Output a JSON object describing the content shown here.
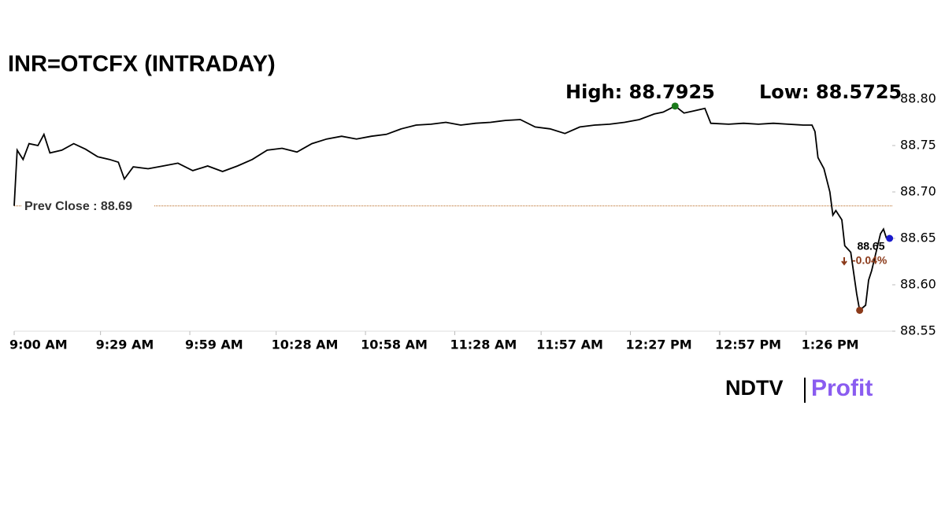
{
  "chart_data": {
    "type": "line",
    "title": "INR=OTCFX (INTRADAY)",
    "x": [
      "9:00 AM",
      "9:01 AM",
      "9:03 AM",
      "9:05 AM",
      "9:08 AM",
      "9:10 AM",
      "9:12 AM",
      "9:16 AM",
      "9:20 AM",
      "9:24 AM",
      "9:28 AM",
      "9:32 AM",
      "9:35 AM",
      "9:37 AM",
      "9:40 AM",
      "9:45 AM",
      "9:50 AM",
      "9:55 AM",
      "10:00 AM",
      "10:05 AM",
      "10:10 AM",
      "10:15 AM",
      "10:20 AM",
      "10:25 AM",
      "10:30 AM",
      "10:35 AM",
      "10:40 AM",
      "10:45 AM",
      "10:50 AM",
      "10:55 AM",
      "11:00 AM",
      "11:05 AM",
      "11:10 AM",
      "11:15 AM",
      "11:20 AM",
      "11:25 AM",
      "11:30 AM",
      "11:35 AM",
      "11:40 AM",
      "11:45 AM",
      "11:50 AM",
      "11:55 AM",
      "12:00 PM",
      "12:05 PM",
      "12:10 PM",
      "12:15 PM",
      "12:20 PM",
      "12:25 PM",
      "12:30 PM",
      "12:35 PM",
      "12:38 PM",
      "12:42 PM",
      "12:45 PM",
      "12:48 PM",
      "12:52 PM",
      "12:54 PM",
      "1:00 PM",
      "1:05 PM",
      "1:10 PM",
      "1:15 PM",
      "1:20 PM",
      "1:25 PM",
      "1:28 PM",
      "1:29 PM",
      "1:30 PM",
      "1:32 PM",
      "1:34 PM",
      "1:35 PM",
      "1:36 PM",
      "1:38 PM",
      "1:39 PM",
      "1:41 PM",
      "1:43 PM",
      "1:44 PM",
      "1:46 PM",
      "1:47 PM",
      "1:48 PM",
      "1:51 PM",
      "1:52 PM",
      "1:53 PM"
    ],
    "values": [
      88.685,
      88.745,
      88.735,
      88.752,
      88.75,
      88.762,
      88.742,
      88.745,
      88.752,
      88.746,
      88.738,
      88.735,
      88.732,
      88.714,
      88.727,
      88.725,
      88.728,
      88.731,
      88.723,
      88.728,
      88.722,
      88.728,
      88.735,
      88.745,
      88.747,
      88.743,
      88.752,
      88.757,
      88.76,
      88.757,
      88.76,
      88.762,
      88.768,
      88.772,
      88.773,
      88.775,
      88.772,
      88.774,
      88.775,
      88.777,
      88.778,
      88.77,
      88.768,
      88.763,
      88.77,
      88.772,
      88.773,
      88.775,
      88.778,
      88.784,
      88.786,
      88.7925,
      88.785,
      88.787,
      88.79,
      88.774,
      88.773,
      88.774,
      88.773,
      88.774,
      88.773,
      88.772,
      88.772,
      88.765,
      88.737,
      88.725,
      88.7,
      88.675,
      88.68,
      88.67,
      88.642,
      88.635,
      88.59,
      88.5725,
      88.578,
      88.605,
      88.615,
      88.655,
      88.66,
      88.65
    ],
    "color": "#000000",
    "xlim": [
      "9:00 AM",
      "1:56 PM"
    ],
    "xticks": [
      "9:00 AM",
      "9:29 AM",
      "9:59 AM",
      "10:28 AM",
      "10:58 AM",
      "11:28 AM",
      "11:57 AM",
      "12:27 PM",
      "12:57 PM",
      "1:26 PM"
    ],
    "ylim": [
      88.55,
      88.8
    ],
    "yticks": [
      88.55,
      {
        "value": 88.6,
        "label": "88.60"
      },
      88.65,
      {
        "value": 88.7,
        "label": "88.70"
      },
      88.75,
      {
        "value": 88.8,
        "label": "88.80"
      }
    ],
    "grid": false,
    "prev_close": {
      "value": 88.685,
      "label": "Prev Close : 88.69",
      "color": "#b5651d"
    },
    "high": {
      "x": "12:42 PM",
      "value": 88.7925,
      "label": "High: 88.7925",
      "color": "#1a7a1a"
    },
    "low": {
      "x": "1:44 PM",
      "value": 88.5725,
      "label": "Low: 88.5725",
      "color": "#8b3a1a"
    },
    "last": {
      "x": "1:53 PM",
      "value": 88.65,
      "label": "88.65",
      "change_label": "-0.04%",
      "color": "#1a1acc"
    },
    "brand": {
      "name": "NDTV",
      "product": "Profit"
    }
  }
}
